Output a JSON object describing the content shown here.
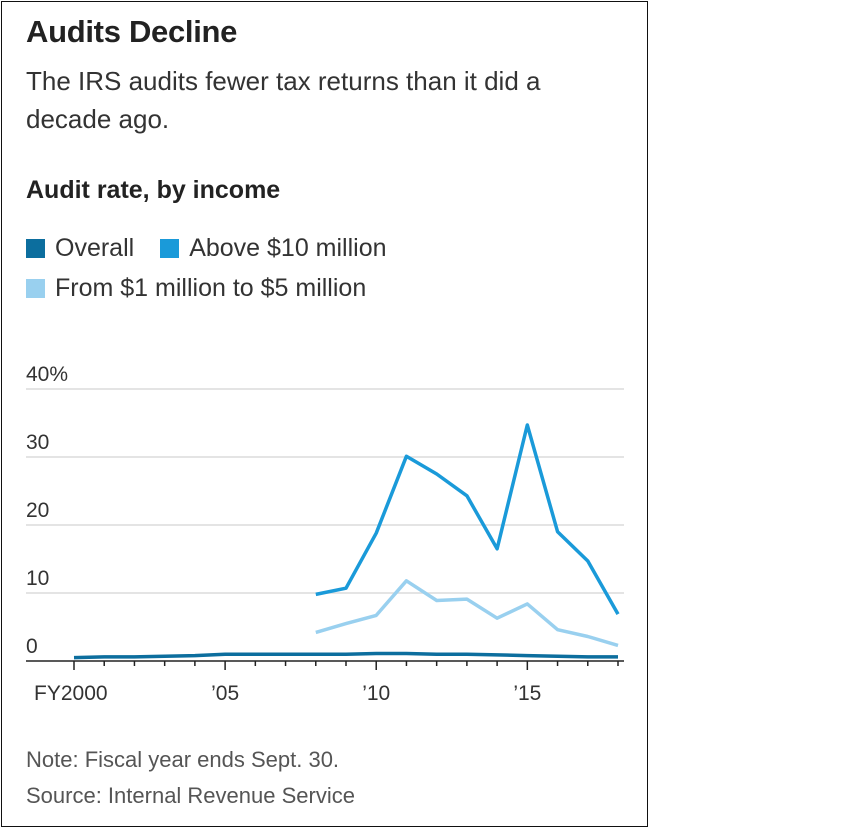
{
  "title": "Audits Decline",
  "subtitle": "The IRS audits fewer tax returns than it did a decade ago.",
  "chart_heading": "Audit rate, by income",
  "note": "Note: Fiscal year ends Sept. 30.",
  "source": "Source: Internal Revenue Service",
  "chart_data": {
    "type": "line",
    "title": "Audit rate, by income",
    "ylim": [
      0,
      40
    ],
    "xlim": [
      2000,
      2018
    ],
    "y_ticks": [
      {
        "value": 0,
        "label": "0"
      },
      {
        "value": 10,
        "label": "10"
      },
      {
        "value": 20,
        "label": "20"
      },
      {
        "value": 30,
        "label": "30"
      },
      {
        "value": 40,
        "label": "40%"
      }
    ],
    "x_ticks": [
      {
        "value": 2000,
        "label": "FY2000"
      },
      {
        "value": 2005,
        "label": "’05"
      },
      {
        "value": 2010,
        "label": "’10"
      },
      {
        "value": 2015,
        "label": "’15"
      }
    ],
    "grid": true,
    "legend_position": "top-left",
    "series": [
      {
        "name": "Overall",
        "color": "#0c6e9e",
        "x": [
          2000,
          2001,
          2002,
          2003,
          2004,
          2005,
          2006,
          2007,
          2008,
          2009,
          2010,
          2011,
          2012,
          2013,
          2014,
          2015,
          2016,
          2017,
          2018
        ],
        "values": [
          0.5,
          0.6,
          0.6,
          0.7,
          0.8,
          1.0,
          1.0,
          1.0,
          1.0,
          1.0,
          1.1,
          1.1,
          1.0,
          1.0,
          0.9,
          0.8,
          0.7,
          0.6,
          0.6
        ]
      },
      {
        "name": "Above $10 million",
        "color": "#1a9ad9",
        "x": [
          2008,
          2009,
          2010,
          2011,
          2012,
          2013,
          2014,
          2015,
          2016,
          2017,
          2018
        ],
        "values": [
          9.8,
          10.7,
          18.8,
          30.1,
          27.5,
          24.3,
          16.5,
          34.7,
          19.0,
          14.7,
          6.9
        ]
      },
      {
        "name": "From $1 million to $5 million",
        "color": "#99d0ef",
        "x": [
          2008,
          2009,
          2010,
          2011,
          2012,
          2013,
          2014,
          2015,
          2016,
          2017,
          2018
        ],
        "values": [
          4.2,
          5.5,
          6.7,
          11.8,
          8.9,
          9.1,
          6.3,
          8.4,
          4.6,
          3.6,
          2.3
        ]
      }
    ]
  }
}
